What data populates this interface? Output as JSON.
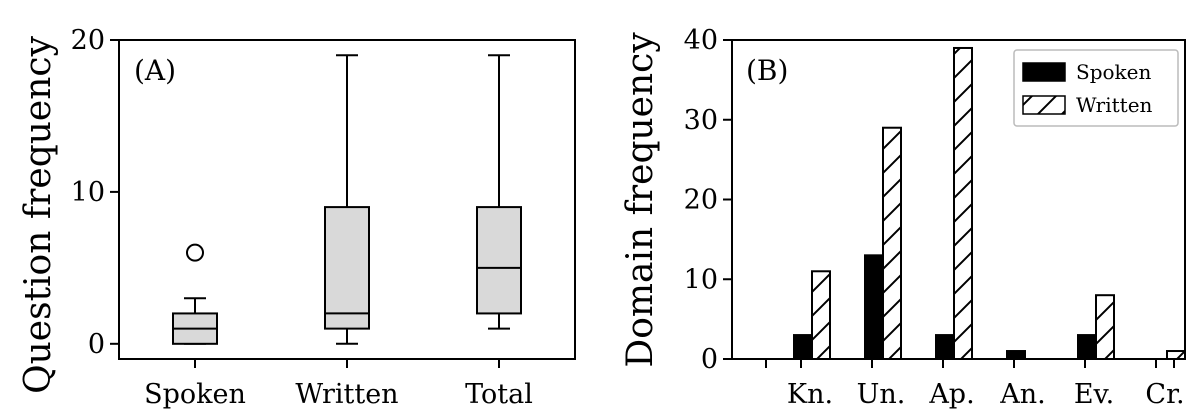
{
  "chart_data": [
    {
      "type": "box",
      "panel_label": "(A)",
      "ylabel": "Question frequency",
      "categories": [
        "Spoken",
        "Written",
        "Total"
      ],
      "ylim": [
        -1,
        20
      ],
      "yticks": [
        0,
        10,
        20
      ],
      "boxes": [
        {
          "name": "Spoken",
          "whisker_low": 0,
          "q1": 0,
          "median": 1,
          "q3": 2,
          "whisker_high": 3,
          "outliers": [
            6
          ]
        },
        {
          "name": "Written",
          "whisker_low": 0,
          "q1": 1,
          "median": 2,
          "q3": 9,
          "whisker_high": 19,
          "outliers": []
        },
        {
          "name": "Total",
          "whisker_low": 1,
          "q1": 2,
          "median": 5,
          "q3": 9,
          "whisker_high": 19,
          "outliers": []
        }
      ],
      "box_fill": "#d9d9d9"
    },
    {
      "type": "bar",
      "panel_label": "(B)",
      "ylabel": "Domain frequency",
      "categories": [
        "Kn.",
        "Un.",
        "Ap.",
        "An.",
        "Ev.",
        "Cr."
      ],
      "ylim": [
        0,
        40
      ],
      "yticks": [
        0,
        10,
        20,
        30,
        40
      ],
      "legend_position": "top-right",
      "series": [
        {
          "name": "Spoken",
          "values": [
            3,
            13,
            3,
            1,
            3,
            0
          ],
          "fill": "#000000"
        },
        {
          "name": "Written",
          "values": [
            11,
            29,
            39,
            0,
            8,
            1
          ],
          "fill": "hatched"
        }
      ]
    }
  ]
}
